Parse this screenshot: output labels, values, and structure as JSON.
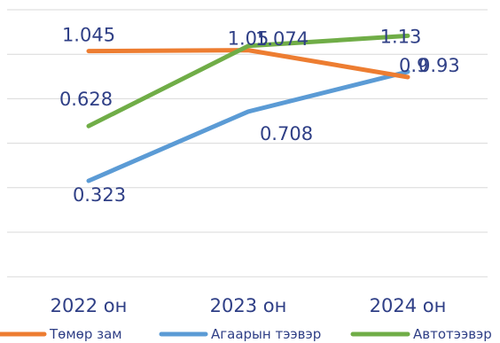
{
  "chart_data": {
    "type": "line",
    "title": "",
    "xlabel": "",
    "ylabel": "",
    "categories": [
      "2022 он",
      "2023 он",
      "2024 он"
    ],
    "ylim": [
      -0.21,
      1.28
    ],
    "grid": true,
    "legend": "bottom",
    "series": [
      {
        "name": "Төмөр зам",
        "color": "#ed7d31",
        "values": [
          1.045,
          1.05,
          0.9
        ],
        "labels": [
          "1.045",
          "1.05",
          "0.9"
        ]
      },
      {
        "name": "Агаарын тээвэр",
        "color": "#5b9bd5",
        "values": [
          0.323,
          0.708,
          0.93
        ],
        "labels": [
          "0.323",
          "0.708",
          "0.93"
        ]
      },
      {
        "name": "Автотээвэр",
        "color": "#70ad47",
        "values": [
          0.628,
          1.074,
          1.13
        ],
        "labels": [
          "0.628",
          "1.074",
          "1.13"
        ]
      }
    ]
  }
}
